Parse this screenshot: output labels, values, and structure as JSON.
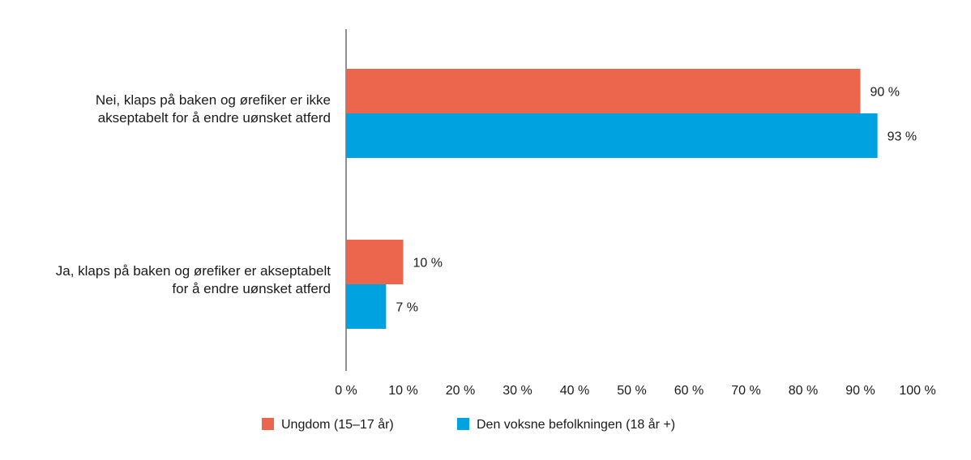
{
  "chart_data": {
    "type": "bar",
    "orientation": "horizontal",
    "categories": [
      [
        "Nei, klaps på baken og ørefiker er ikke",
        "akseptabelt for å endre uønsket atferd"
      ],
      [
        "Ja, klaps på baken og ørefiker er akseptabelt",
        "for å endre uønsket atferd"
      ]
    ],
    "series": [
      {
        "name": "Ungdom (15–17 år)",
        "color": "#ec664e",
        "values": [
          90,
          10
        ],
        "labels": [
          "90 %",
          "10 %"
        ]
      },
      {
        "name": "Den voksne befolkningen (18 år +)",
        "color": "#00a3e0",
        "values": [
          93,
          7
        ],
        "labels": [
          "93 %",
          "7 %"
        ]
      }
    ],
    "xlim": [
      0,
      100
    ],
    "xticks": [
      0,
      10,
      20,
      30,
      40,
      50,
      60,
      70,
      80,
      90,
      100
    ],
    "xtick_labels": [
      "0 %",
      "10 %",
      "20 %",
      "30 %",
      "40 %",
      "50 %",
      "60 %",
      "70 %",
      "80 %",
      "90 %",
      "100 %"
    ],
    "grid": false,
    "legend": "bottom"
  }
}
